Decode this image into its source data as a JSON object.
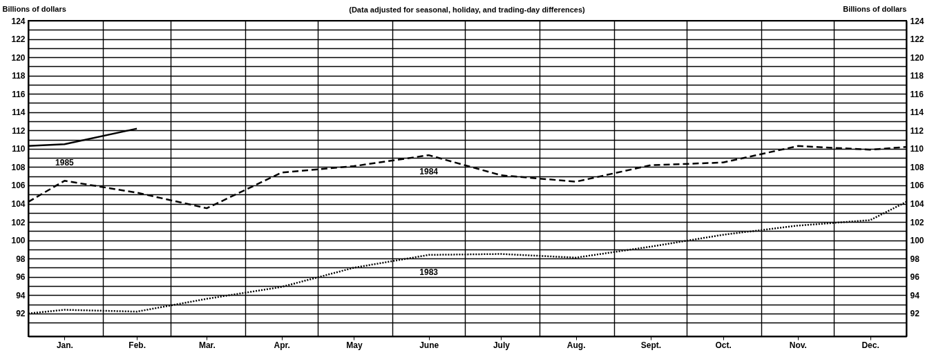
{
  "chart_data": {
    "type": "line",
    "subtitle": "(Data adjusted for seasonal, holiday, and trading-day differences)",
    "ylabel": "Billions of dollars",
    "y2label": "Billions of dollars",
    "xlim": [
      "--01-01",
      "--12-31"
    ],
    "xticks": [
      {
        "value": "--01-16",
        "label": "Jan."
      },
      {
        "value": "--02-15",
        "label": "Feb."
      },
      {
        "value": "--03-16",
        "label": "Mar."
      },
      {
        "value": "--04-16",
        "label": "Apr."
      },
      {
        "value": "--05-16",
        "label": "May"
      },
      {
        "value": "--06-16",
        "label": "June"
      },
      {
        "value": "--07-16",
        "label": "July"
      },
      {
        "value": "--08-16",
        "label": "Aug."
      },
      {
        "value": "--09-16",
        "label": "Sept."
      },
      {
        "value": "--10-16",
        "label": "Oct."
      },
      {
        "value": "--11-16",
        "label": "Nov."
      },
      {
        "value": "--12-16",
        "label": "Dec."
      },
      {
        "value": "--02-01",
        "label": null
      },
      {
        "value": "--03-01",
        "label": null
      },
      {
        "value": "--04-01",
        "label": null
      },
      {
        "value": "--05-01",
        "label": null
      },
      {
        "value": "--06-01",
        "label": null
      },
      {
        "value": "--07-01",
        "label": null
      },
      {
        "value": "--08-01",
        "label": null
      },
      {
        "value": "--09-01",
        "label": null
      },
      {
        "value": "--10-01",
        "label": null
      },
      {
        "value": "--11-01",
        "label": null
      },
      {
        "value": "--12-01",
        "label": null
      }
    ],
    "ylim": [
      89.5,
      124
    ],
    "yticks": [
      92,
      94,
      96,
      98,
      100,
      102,
      104,
      106,
      108,
      110,
      112,
      114,
      116,
      118,
      120,
      122,
      124,
      {
        "value": 91,
        "label": null
      },
      {
        "value": 93,
        "label": null
      },
      {
        "value": 95,
        "label": null
      },
      {
        "value": 97,
        "label": null
      },
      {
        "value": 99,
        "label": null
      },
      {
        "value": 101,
        "label": null
      },
      {
        "value": 103,
        "label": null
      },
      {
        "value": 105,
        "label": null
      },
      {
        "value": 107,
        "label": null
      },
      {
        "value": 109,
        "label": null
      },
      {
        "value": 111,
        "label": null
      },
      {
        "value": 113,
        "label": null
      },
      {
        "value": 115,
        "label": null
      },
      {
        "value": 117,
        "label": null
      },
      {
        "value": 119,
        "label": null
      },
      {
        "value": 121,
        "label": null
      },
      {
        "value": 123,
        "label": null
      }
    ],
    "y2lim": [
      89.5,
      124
    ],
    "y2ticks": [
      92,
      94,
      96,
      98,
      100,
      102,
      104,
      106,
      108,
      110,
      112,
      114,
      116,
      118,
      120,
      122,
      124
    ],
    "grid": true,
    "series": [
      {
        "name": "1983",
        "color": "#000000",
        "line_style": "dotted",
        "x": [
          "--01-01",
          "--01-16",
          "--02-15",
          "--03-16",
          "--04-16",
          "--05-16",
          "--06-16",
          "--07-16",
          "--08-16",
          "--09-16",
          "--10-16",
          "--11-16",
          "--12-16",
          "--12-31"
        ],
        "values": [
          92.0,
          92.4,
          92.2,
          93.6,
          94.9,
          97.0,
          98.4,
          98.5,
          98.1,
          99.3,
          100.6,
          101.6,
          102.2,
          104.2
        ]
      },
      {
        "name": "1984",
        "color": "#000000",
        "line_style": "dashed",
        "x": [
          "--01-01",
          "--01-16",
          "--02-15",
          "--03-16",
          "--04-16",
          "--05-16",
          "--06-16",
          "--07-16",
          "--08-16",
          "--09-16",
          "--10-16",
          "--11-16",
          "--12-16",
          "--12-31"
        ],
        "values": [
          104.2,
          106.5,
          105.2,
          103.5,
          107.4,
          108.1,
          109.3,
          107.1,
          106.4,
          108.2,
          108.5,
          110.3,
          109.9,
          110.2
        ]
      },
      {
        "name": "1985",
        "color": "#000000",
        "line_style": "solid",
        "x": [
          "--01-01",
          "--01-16",
          "--02-15"
        ],
        "values": [
          110.3,
          110.5,
          112.2
        ]
      }
    ]
  }
}
